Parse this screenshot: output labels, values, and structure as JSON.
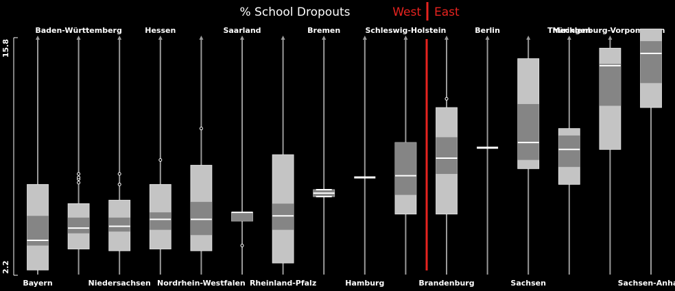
{
  "chart_data": {
    "type": "boxplot",
    "title": "% School Dropouts",
    "split": {
      "left_label": "West",
      "right_label": "East",
      "color": "#e8231f"
    },
    "y_ticks": [
      "15.8",
      "2.2"
    ],
    "ylim": [
      2.2,
      15.8
    ],
    "colors": {
      "background": "#000000",
      "box_outer": "#c4c4c4",
      "box_inner": "#858585",
      "median": "#ffffff",
      "whisker": "#9a9a9a"
    },
    "states": [
      {
        "name": "Bayern",
        "label_pos": "bottom",
        "region": "West",
        "q10": 2.5,
        "q25": 3.9,
        "median": 4.2,
        "q75": 5.6,
        "q90": 7.4,
        "outliers": []
      },
      {
        "name": "Baden-Württemberg",
        "label_pos": "top",
        "region": "West",
        "q10": 3.7,
        "q25": 4.6,
        "median": 4.9,
        "q75": 5.5,
        "q90": 6.3,
        "outliers": [
          7.5,
          7.7,
          7.8,
          8.0
        ]
      },
      {
        "name": "Niedersachsen",
        "label_pos": "bottom",
        "region": "West",
        "q10": 3.6,
        "q25": 4.7,
        "median": 5.0,
        "q75": 5.5,
        "q90": 6.5,
        "outliers": [
          7.4,
          8.0
        ]
      },
      {
        "name": "Hessen",
        "label_pos": "top",
        "region": "West",
        "q10": 3.7,
        "q25": 4.8,
        "median": 5.4,
        "q75": 5.8,
        "q90": 7.4,
        "outliers": [
          8.8
        ]
      },
      {
        "name": "Nordrhein-Westfalen",
        "label_pos": "bottom",
        "region": "West",
        "q10": 3.6,
        "q25": 4.5,
        "median": 5.4,
        "q75": 6.4,
        "q90": 8.5,
        "outliers": [
          10.6
        ]
      },
      {
        "name": "Saarland",
        "label_pos": "top",
        "region": "West",
        "q10": 5.3,
        "q25": 5.3,
        "median": 5.8,
        "q75": 5.8,
        "q90": 5.8,
        "outliers": [
          3.9
        ]
      },
      {
        "name": "Rheinland-Pfalz",
        "label_pos": "bottom",
        "region": "West",
        "q10": 2.9,
        "q25": 4.8,
        "median": 5.6,
        "q75": 6.3,
        "q90": 9.1,
        "outliers": []
      },
      {
        "name": "Bremen",
        "label_pos": "top",
        "region": "West",
        "q10": 6.7,
        "q25": 6.7,
        "median": 6.9,
        "q75": 7.1,
        "q90": 7.1,
        "outliers": []
      },
      {
        "name": "Hamburg",
        "label_pos": "bottom",
        "region": "West",
        "q10": 7.8,
        "q25": 7.8,
        "median": 7.8,
        "q75": 7.8,
        "q90": 7.8,
        "outliers": []
      },
      {
        "name": "Schleswig-Holstein",
        "label_pos": "top",
        "region": "West",
        "q10": 5.7,
        "q25": 6.8,
        "median": 7.9,
        "q75": 9.8,
        "q90": 9.8,
        "outliers": []
      },
      {
        "name": "Brandenburg",
        "label_pos": "bottom",
        "region": "East",
        "q10": 5.7,
        "q25": 8.0,
        "median": 8.9,
        "q75": 10.1,
        "q90": 11.8,
        "outliers": [
          12.3
        ]
      },
      {
        "name": "Berlin",
        "label_pos": "top",
        "region": "East",
        "q10": 9.5,
        "q25": 9.5,
        "median": 9.5,
        "q75": 9.5,
        "q90": 9.5,
        "outliers": []
      },
      {
        "name": "Sachsen",
        "label_pos": "bottom",
        "region": "East",
        "q10": 8.3,
        "q25": 8.8,
        "median": 9.8,
        "q75": 12.0,
        "q90": 14.6,
        "outliers": []
      },
      {
        "name": "Thüringen",
        "label_pos": "top",
        "region": "East",
        "q10": 7.4,
        "q25": 8.4,
        "median": 9.4,
        "q75": 10.2,
        "q90": 10.6,
        "outliers": []
      },
      {
        "name": "Mecklenburg-Vorpommern",
        "label_pos": "top",
        "region": "East",
        "q10": 9.4,
        "q25": 11.9,
        "median": 14.2,
        "q75": 14.3,
        "q90": 15.2,
        "outliers": []
      },
      {
        "name": "Sachsen-Anhalt",
        "label_pos": "bottom",
        "region": "East",
        "q10": 11.8,
        "q25": 13.2,
        "median": 14.9,
        "q75": 15.6,
        "q90": 16.3,
        "outliers": []
      }
    ]
  }
}
